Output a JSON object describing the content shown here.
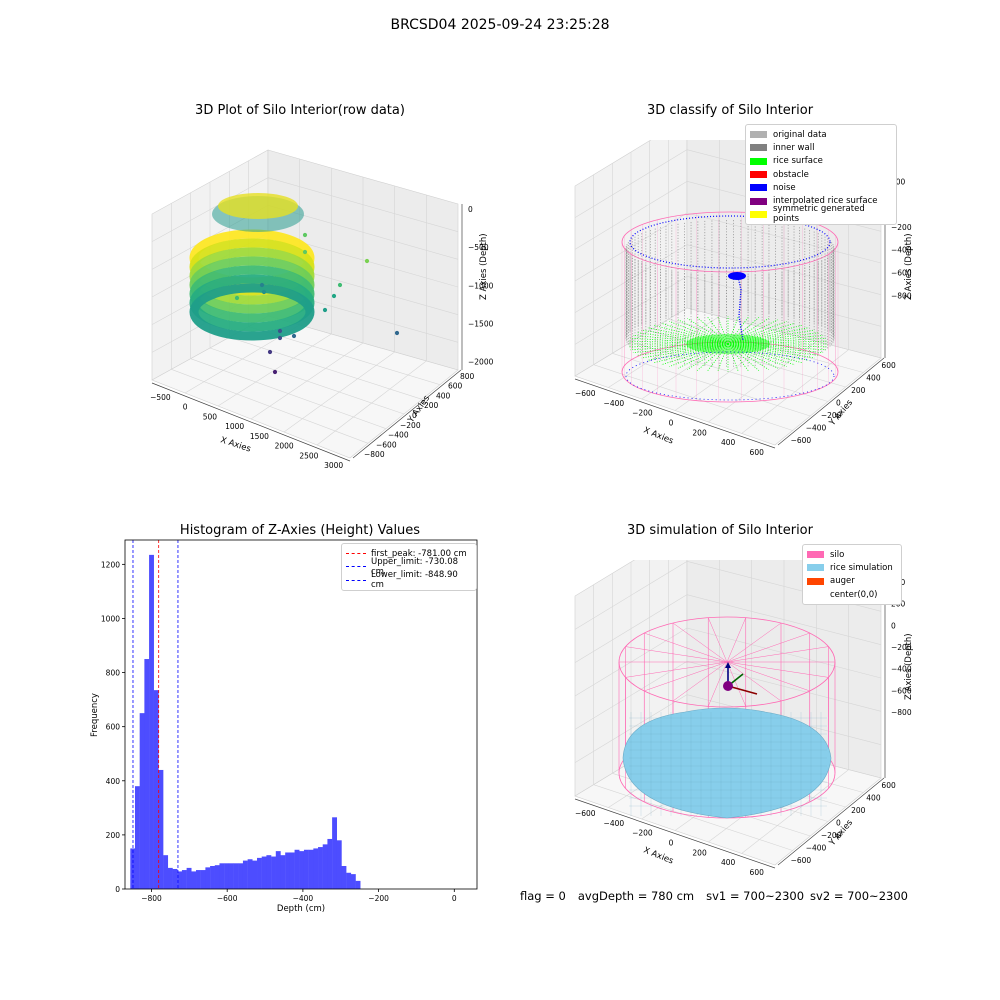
{
  "suptitle": "BRCSD04 2025-09-24 23:25:28",
  "colors": {
    "rice_surface": "#00ff00",
    "noise": "#0000ff",
    "inner_wall": "#808080",
    "silo": "#ff69b4",
    "rice_sim": "#87ceeb",
    "hist_bar": "#4d4dff"
  },
  "chart_data": [
    {
      "id": "p1",
      "type": "scatter3d",
      "title": "3D Plot of Silo Interior(row data)",
      "xlabel": "X Axies",
      "ylabel": "Y Axies",
      "zlabel": "Z Axies (Depth)",
      "x_ticks": [
        "−500",
        "0",
        "500",
        "1000",
        "1500",
        "2000",
        "2500",
        "3000"
      ],
      "y_ticks": [
        "−800",
        "−600",
        "−400",
        "−200",
        "0",
        "200",
        "400",
        "600",
        "800"
      ],
      "z_ticks": [
        "−2000",
        "−1500",
        "−1000",
        "−500",
        "0"
      ],
      "colormap": "viridis"
    },
    {
      "id": "p2",
      "type": "scatter3d",
      "title": "3D classify of Silo Interior",
      "xlabel": "X Axies",
      "ylabel": "Y Axies",
      "zlabel": "Z Axies (Depth)",
      "x_ticks": [
        "−600",
        "−400",
        "−200",
        "0",
        "200",
        "400",
        "600"
      ],
      "y_ticks": [
        "−600",
        "−400",
        "−200",
        "0",
        "200",
        "400",
        "600"
      ],
      "z_ticks": [
        "−800",
        "−600",
        "−400",
        "−200",
        "0",
        "200"
      ],
      "legend": [
        {
          "label": "original data",
          "color": "#b0b0b0"
        },
        {
          "label": "inner wall",
          "color": "#808080"
        },
        {
          "label": "rice surface",
          "color": "#00ff00"
        },
        {
          "label": "obstacle",
          "color": "#ff0000"
        },
        {
          "label": "noise",
          "color": "#0000ff"
        },
        {
          "label": "interpolated rice surface",
          "color": "#800080"
        },
        {
          "label": "symmetric generated points",
          "color": "#ffff00"
        }
      ]
    },
    {
      "id": "p3",
      "type": "bar",
      "title": "Histogram of Z-Axies (Height) Values",
      "xlabel": "Depth (cm)",
      "ylabel": "Frequency",
      "xlim": [
        -870,
        60
      ],
      "ylim": [
        0,
        1290
      ],
      "x_ticks": [
        -800,
        -600,
        -400,
        -200,
        0
      ],
      "x_tick_labels": [
        "−800",
        "−600",
        "−400",
        "−200",
        "0"
      ],
      "y_ticks": [
        0,
        200,
        400,
        600,
        800,
        1000,
        1200
      ],
      "bin_start": -856,
      "bin_width": 12.4,
      "values": [
        150,
        380,
        650,
        850,
        1235,
        735,
        440,
        125,
        78,
        74,
        65,
        70,
        78,
        65,
        70,
        70,
        80,
        85,
        88,
        95,
        95,
        95,
        95,
        95,
        105,
        110,
        105,
        115,
        120,
        125,
        120,
        140,
        125,
        135,
        135,
        145,
        140,
        145,
        145,
        150,
        155,
        165,
        185,
        265,
        180,
        85,
        60,
        55,
        30
      ],
      "vlines": [
        {
          "label": "first_peak: -781.00 cm",
          "x": -781.0,
          "color": "#ff0000"
        },
        {
          "label": "Upper_limit: -730.08 cm",
          "x": -730.08,
          "color": "#0000ff"
        },
        {
          "label": "Lower_limit: -848.90 cm",
          "x": -848.9,
          "color": "#0000ff"
        }
      ],
      "legend_position": "top-right"
    },
    {
      "id": "p4",
      "type": "surface3d",
      "title": "3D simulation of Silo Interior",
      "xlabel": "X Axies",
      "ylabel": "Y Axies",
      "zlabel": "Z Axies (Depth)",
      "x_ticks": [
        "−600",
        "−400",
        "−200",
        "0",
        "200",
        "400",
        "600"
      ],
      "y_ticks": [
        "−600",
        "−400",
        "−200",
        "0",
        "200",
        "400",
        "600"
      ],
      "z_ticks": [
        "−800",
        "−600",
        "−400",
        "−200",
        "0",
        "200",
        "400"
      ],
      "legend": [
        {
          "label": "silo",
          "color": "#ff69b4"
        },
        {
          "label": "rice simulation",
          "color": "#87ceeb"
        },
        {
          "label": "auger",
          "color": "#ff4500"
        },
        {
          "label": "center(0,0)",
          "color": "#ffffff"
        }
      ]
    }
  ],
  "footer": {
    "flag": "flag = 0",
    "avg_depth": "avgDepth = 780 cm",
    "sv1": "sv1 = 700~2300",
    "sv2": "sv2 = 700~2300"
  }
}
